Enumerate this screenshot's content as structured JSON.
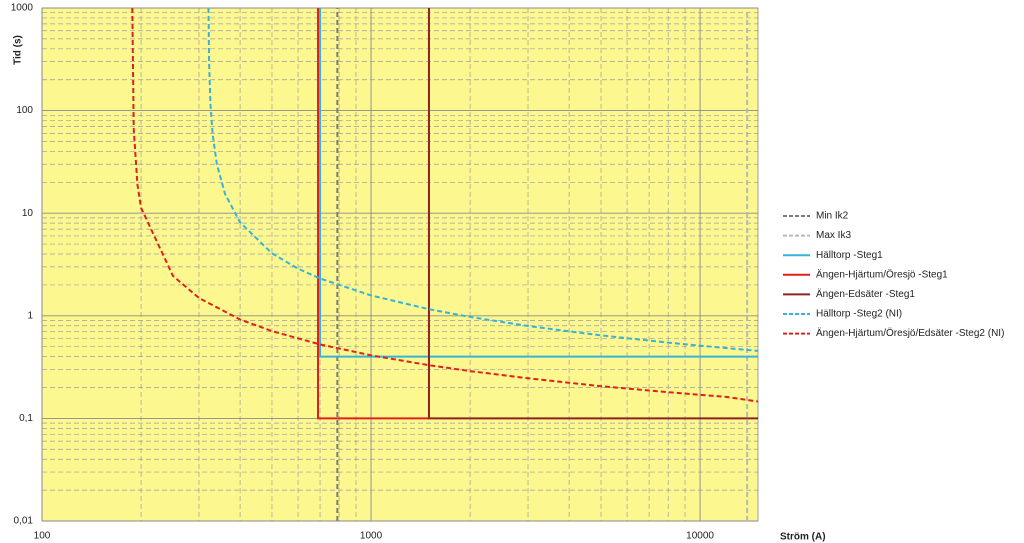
{
  "chart_data": {
    "type": "line",
    "x_label": "Ström (A)",
    "y_label": "Tid (s)",
    "log_x": true,
    "log_y": true,
    "grid": true,
    "minor_grid": true,
    "background": "#fcf88f",
    "legend": "right",
    "xlim": [
      100,
      15000
    ],
    "ylim": [
      0.01,
      1000
    ],
    "xticks": [
      100,
      1000,
      10000
    ],
    "yticks": [
      {
        "value": 0.01,
        "label": "0,01"
      },
      {
        "value": 0.1,
        "label": "0,1"
      },
      1,
      10,
      100,
      1000
    ],
    "series": [
      {
        "name": "Min Ik2",
        "color": "#7a7a7a",
        "dash": true,
        "x": [
          790,
          790
        ],
        "values": [
          0.01,
          1000
        ]
      },
      {
        "name": "Max Ik3",
        "color": "#b8b8b8",
        "dash": true,
        "x": [
          13900,
          13900
        ],
        "values": [
          0.01,
          1000
        ]
      },
      {
        "name": "Hälltorp -Steg1",
        "color": "#35b3da",
        "dash": false,
        "x": [
          700,
          700,
          15000
        ],
        "values": [
          1000,
          0.4,
          0.4
        ]
      },
      {
        "name": "Ängen-Hjärtum/Öresjö -Steg1",
        "color": "#e0211b",
        "dash": false,
        "x": [
          690,
          690,
          1500
        ],
        "values": [
          1000,
          0.1,
          0.1
        ]
      },
      {
        "name": "Ängen-Edsäter -Steg1",
        "color": "#8e2323",
        "dash": false,
        "x": [
          1500,
          1500,
          15000
        ],
        "values": [
          1000,
          0.1,
          0.1
        ]
      },
      {
        "name": "Hälltorp -Steg2 (NI)",
        "color": "#35b3da",
        "dash": true,
        "x": [
          320.6,
          322,
          325,
          330,
          340,
          360,
          400,
          500,
          600,
          700,
          1000,
          1500,
          2000,
          3000,
          5000,
          8000,
          12000,
          15000
        ],
        "values": [
          1000,
          292,
          117,
          59.1,
          30.0,
          15.4,
          8.14,
          4.06,
          2.88,
          2.31,
          1.58,
          1.16,
          0.975,
          0.795,
          0.644,
          0.548,
          0.485,
          0.455
        ]
      },
      {
        "name": "Ängen-Hjärtum/Öresjö/Edsäter -Steg2 (NI)",
        "color": "#e0211b",
        "dash": true,
        "x": [
          188.13,
          190,
          195,
          200,
          250,
          300,
          400,
          500,
          700,
          1000,
          1500,
          2000,
          3000,
          5000,
          8000,
          12000,
          15000
        ],
        "values": [
          1000,
          66.1,
          19.1,
          11.3,
          2.45,
          1.49,
          0.92,
          0.709,
          0.526,
          0.412,
          0.33,
          0.289,
          0.246,
          0.206,
          0.18,
          0.162,
          0.146
        ]
      }
    ]
  }
}
